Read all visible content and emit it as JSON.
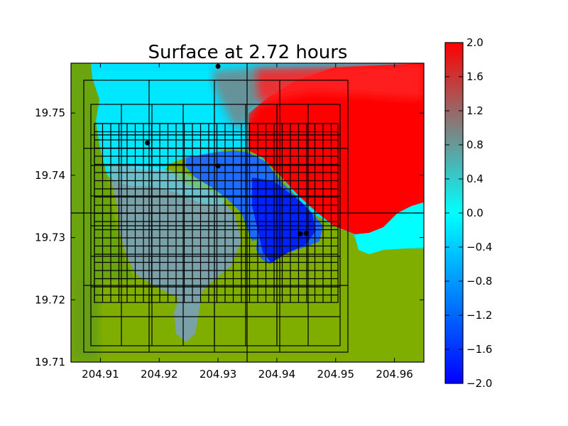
{
  "chart_data": {
    "type": "heatmap",
    "title": "Surface at 2.72 hours",
    "xlabel": "",
    "ylabel": "",
    "xlim": [
      204.905,
      204.965
    ],
    "ylim": [
      19.71,
      19.758
    ],
    "x_ticks": [
      "204.91",
      "204.92",
      "204.93",
      "204.94",
      "204.95",
      "204.96"
    ],
    "y_ticks": [
      "19.71",
      "19.72",
      "19.73",
      "19.74",
      "19.75"
    ],
    "colorbar": {
      "vmin": -2.0,
      "vmax": 2.0,
      "ticks": [
        "2.0",
        "1.6",
        "1.2",
        "0.8",
        "0.4",
        "0.0",
        "−0.4",
        "−0.8",
        "−1.2",
        "−1.6",
        "−2.0"
      ],
      "colors": [
        "#0000ff",
        "#00ffff",
        "#808080",
        "#ff0000"
      ]
    },
    "land_color": "#7fae00",
    "grid_lines": true,
    "gauges": [
      {
        "x": 204.93,
        "y": 19.7575
      },
      {
        "x": 204.918,
        "y": 19.7452
      },
      {
        "x": 204.93,
        "y": 19.7415
      },
      {
        "x": 204.944,
        "y": 19.7306
      },
      {
        "x": 204.945,
        "y": 19.7307
      }
    ]
  }
}
